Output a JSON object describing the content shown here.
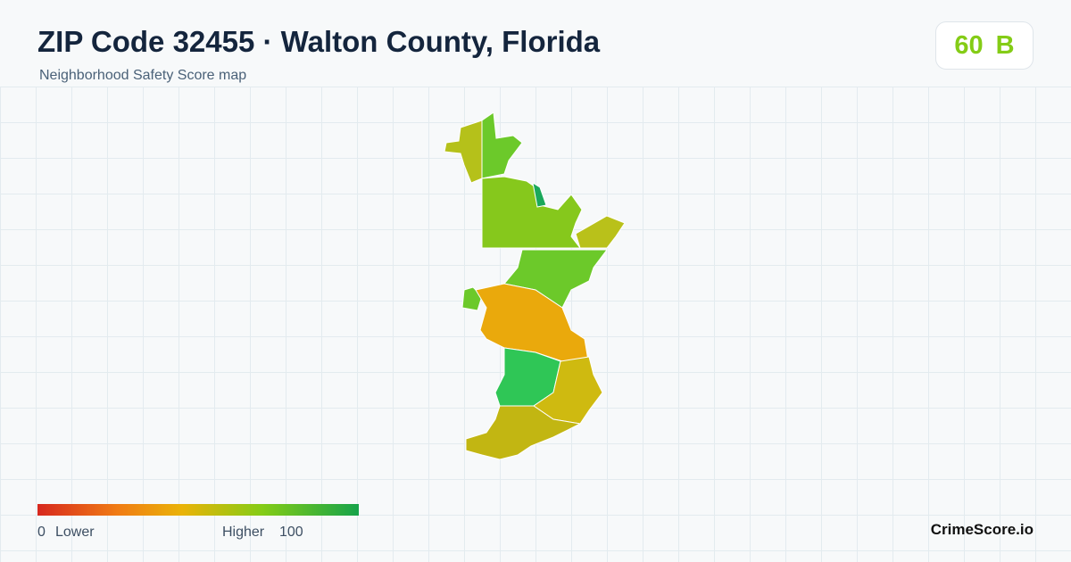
{
  "header": {
    "title": "ZIP Code 32455 · Walton County, Florida",
    "subtitle": "Neighborhood Safety Score map"
  },
  "score": {
    "value": 60,
    "grade": "B"
  },
  "legend": {
    "min": 0,
    "min_label": "Lower",
    "max_label": "Higher",
    "max": 100
  },
  "brand": "CrimeScore.io"
}
